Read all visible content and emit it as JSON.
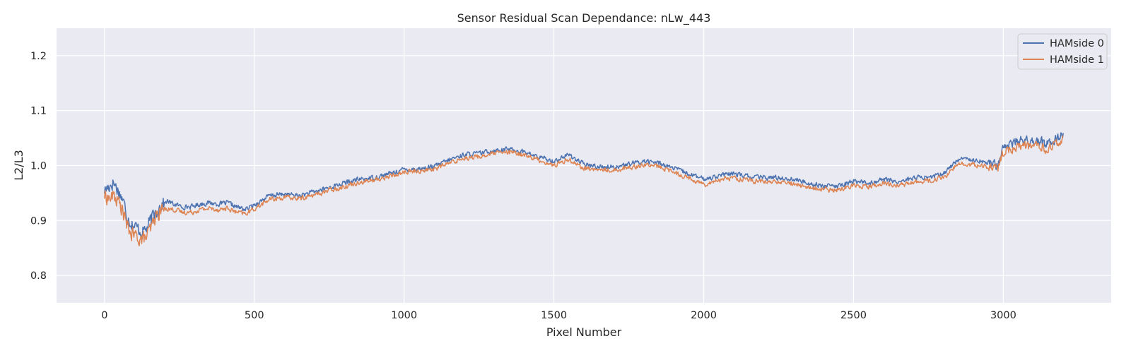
{
  "chart_data": {
    "type": "line",
    "title": "Sensor Residual Scan Dependance: nLw_443",
    "xlabel": "Pixel Number",
    "ylabel": "L2/L3",
    "xlim": [
      -160,
      3360
    ],
    "ylim": [
      0.75,
      1.25
    ],
    "xticks": [
      "0",
      "500",
      "1000",
      "1500",
      "2000",
      "2500",
      "3000"
    ],
    "yticks": [
      "0.8",
      "0.9",
      "1.0",
      "1.1",
      "1.2"
    ],
    "grid": true,
    "legend_position": "top-right",
    "background_color": "#eaeaf2",
    "grid_color": "#ffffff",
    "series": [
      {
        "name": "HAMside 0",
        "color": "#4c72b0",
        "x": [
          0,
          20,
          30,
          45,
          60,
          75,
          90,
          110,
          125,
          140,
          155,
          170,
          190,
          210,
          230,
          260,
          290,
          320,
          350,
          380,
          410,
          440,
          470,
          490,
          520,
          550,
          600,
          650,
          700,
          750,
          800,
          850,
          900,
          950,
          1000,
          1050,
          1100,
          1150,
          1200,
          1250,
          1300,
          1350,
          1400,
          1450,
          1500,
          1550,
          1600,
          1650,
          1700,
          1750,
          1800,
          1850,
          1900,
          1950,
          2000,
          2050,
          2100,
          2150,
          2200,
          2250,
          2300,
          2350,
          2400,
          2450,
          2500,
          2550,
          2600,
          2650,
          2700,
          2750,
          2800,
          2850,
          2900,
          2950,
          2980,
          3000,
          3050,
          3100,
          3150,
          3200
        ],
        "y": [
          0.955,
          0.965,
          0.97,
          0.955,
          0.94,
          0.91,
          0.895,
          0.885,
          0.88,
          0.885,
          0.9,
          0.915,
          0.93,
          0.935,
          0.93,
          0.925,
          0.925,
          0.93,
          0.932,
          0.93,
          0.932,
          0.925,
          0.92,
          0.925,
          0.935,
          0.945,
          0.948,
          0.945,
          0.952,
          0.96,
          0.968,
          0.975,
          0.978,
          0.985,
          0.993,
          0.994,
          0.998,
          1.01,
          1.02,
          1.022,
          1.028,
          1.03,
          1.025,
          1.015,
          1.008,
          1.02,
          1.002,
          0.998,
          0.998,
          1.002,
          1.008,
          1.005,
          0.995,
          0.985,
          0.975,
          0.982,
          0.985,
          0.98,
          0.978,
          0.978,
          0.975,
          0.968,
          0.963,
          0.962,
          0.972,
          0.968,
          0.975,
          0.97,
          0.978,
          0.978,
          0.985,
          1.012,
          1.012,
          1.005,
          1.0,
          1.035,
          1.045,
          1.045,
          1.04,
          1.06
        ]
      },
      {
        "name": "HAMside 1",
        "color": "#dd8452",
        "x": [
          0,
          20,
          30,
          45,
          60,
          75,
          90,
          110,
          125,
          140,
          155,
          170,
          190,
          210,
          230,
          260,
          290,
          320,
          350,
          380,
          410,
          440,
          470,
          490,
          520,
          550,
          600,
          650,
          700,
          750,
          800,
          850,
          900,
          950,
          1000,
          1050,
          1100,
          1150,
          1200,
          1250,
          1300,
          1350,
          1400,
          1450,
          1500,
          1550,
          1600,
          1650,
          1700,
          1750,
          1800,
          1850,
          1900,
          1950,
          2000,
          2050,
          2100,
          2150,
          2200,
          2250,
          2300,
          2350,
          2400,
          2450,
          2500,
          2550,
          2600,
          2650,
          2700,
          2750,
          2800,
          2850,
          2900,
          2950,
          2980,
          3000,
          3050,
          3100,
          3150,
          3200
        ],
        "y": [
          0.945,
          0.94,
          0.945,
          0.935,
          0.92,
          0.89,
          0.875,
          0.87,
          0.865,
          0.87,
          0.885,
          0.905,
          0.92,
          0.922,
          0.92,
          0.915,
          0.915,
          0.92,
          0.922,
          0.92,
          0.922,
          0.915,
          0.912,
          0.918,
          0.928,
          0.938,
          0.942,
          0.94,
          0.946,
          0.955,
          0.962,
          0.97,
          0.973,
          0.98,
          0.988,
          0.99,
          0.994,
          1.004,
          1.014,
          1.016,
          1.022,
          1.024,
          1.02,
          1.01,
          1.0,
          1.012,
          0.995,
          0.992,
          0.992,
          0.996,
          1.002,
          0.998,
          0.988,
          0.978,
          0.966,
          0.974,
          0.978,
          0.973,
          0.97,
          0.97,
          0.967,
          0.96,
          0.956,
          0.955,
          0.965,
          0.962,
          0.968,
          0.963,
          0.97,
          0.972,
          0.978,
          1.002,
          1.002,
          0.997,
          0.993,
          1.025,
          1.035,
          1.035,
          1.03,
          1.045
        ]
      }
    ]
  }
}
